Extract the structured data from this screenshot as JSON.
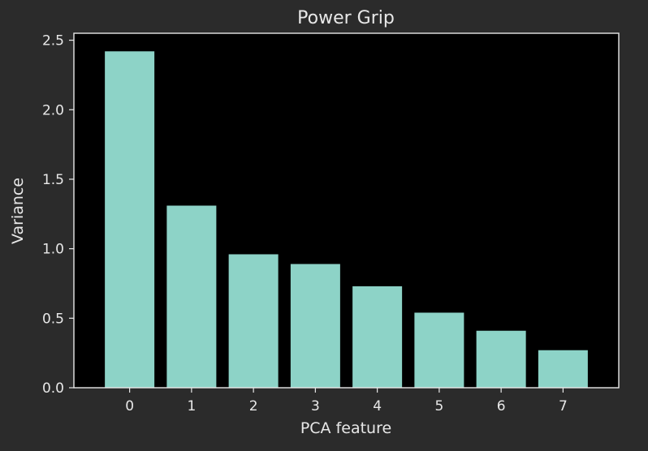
{
  "chart_data": {
    "type": "bar",
    "title": "Power Grip",
    "xlabel": "PCA feature",
    "ylabel": "Variance",
    "categories": [
      "0",
      "1",
      "2",
      "3",
      "4",
      "5",
      "6",
      "7"
    ],
    "values": [
      2.42,
      1.31,
      0.96,
      0.89,
      0.73,
      0.54,
      0.41,
      0.27
    ],
    "ylim": [
      0,
      2.55
    ],
    "yticks": [
      "0.0",
      "0.5",
      "1.0",
      "1.5",
      "2.0",
      "2.5"
    ],
    "grid": false,
    "colors": {
      "page_background": "#2b2b2b",
      "plot_background": "#000000",
      "bar": "#8dd3c7",
      "axes": "#e8e8e8",
      "text": "#e8e8e8"
    }
  }
}
